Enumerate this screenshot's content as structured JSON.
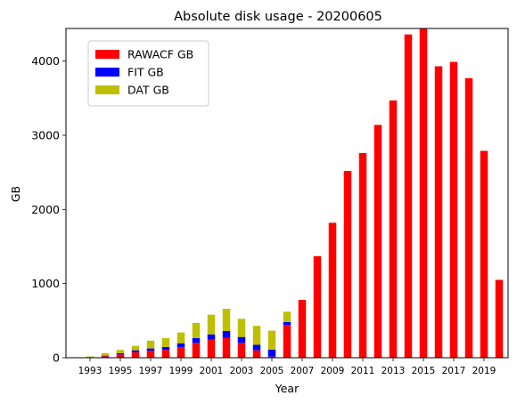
{
  "chart_data": {
    "type": "bar",
    "stacked": true,
    "title": "Absolute disk usage - 20200605",
    "xlabel": "Year",
    "ylabel": "GB",
    "ylim": [
      0,
      4440
    ],
    "grid": false,
    "legend_position": "upper-left",
    "categories": [
      "1993",
      "1994",
      "1995",
      "1996",
      "1997",
      "1998",
      "1999",
      "2000",
      "2001",
      "2002",
      "2003",
      "2004",
      "2005",
      "2006",
      "2007",
      "2008",
      "2009",
      "2010",
      "2011",
      "2012",
      "2013",
      "2014",
      "2015",
      "2016",
      "2017",
      "2018",
      "2019",
      "2020"
    ],
    "x_tick_labels": [
      "1993",
      "1995",
      "1997",
      "1999",
      "2001",
      "2003",
      "2005",
      "2007",
      "2009",
      "2011",
      "2013",
      "2015",
      "2017",
      "2019"
    ],
    "y_ticks": [
      0,
      1000,
      2000,
      3000,
      4000
    ],
    "y_tick_labels": [
      "0",
      "1000",
      "2000",
      "3000",
      "4000"
    ],
    "series": [
      {
        "name": "RAWACF GB",
        "color": "#ff0000",
        "values": [
          5,
          20,
          45,
          75,
          95,
          105,
          140,
          200,
          245,
          270,
          200,
          100,
          15,
          440,
          780,
          1370,
          1820,
          2520,
          2760,
          3140,
          3470,
          4360,
          4440,
          3930,
          3990,
          3770,
          2790,
          1050
        ]
      },
      {
        "name": "FIT GB",
        "color": "#0000ff",
        "values": [
          2,
          8,
          15,
          25,
          30,
          40,
          55,
          65,
          70,
          90,
          80,
          75,
          95,
          40,
          0,
          0,
          0,
          0,
          0,
          0,
          0,
          0,
          0,
          0,
          0,
          0,
          0,
          0
        ]
      },
      {
        "name": "DAT GB",
        "color": "#bfbf00",
        "values": [
          10,
          35,
          45,
          60,
          105,
          120,
          145,
          205,
          265,
          300,
          245,
          255,
          255,
          140,
          0,
          0,
          0,
          0,
          0,
          0,
          0,
          0,
          0,
          0,
          0,
          0,
          0,
          0
        ]
      }
    ]
  }
}
